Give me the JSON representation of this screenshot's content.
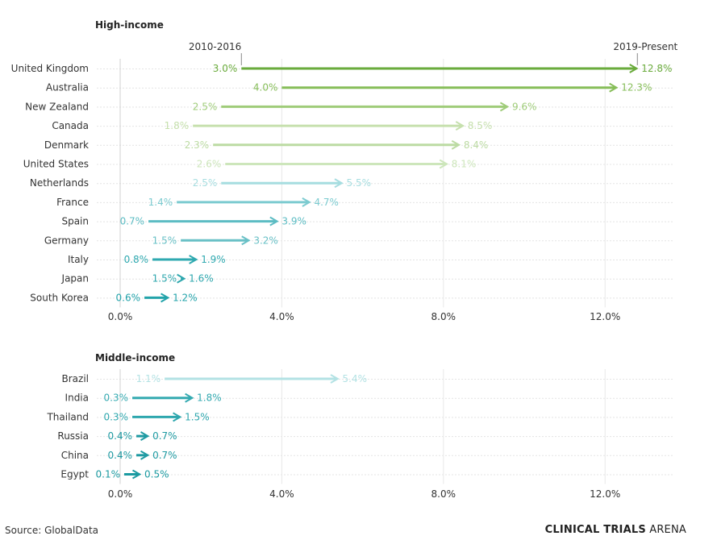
{
  "chart_data": [
    {
      "type": "dumbbell-arrow",
      "title": "High-income",
      "start_label": "2010-2016",
      "end_label": "2019-Present",
      "xlim": [
        0,
        13.8
      ],
      "xticks": [
        "0.0%",
        "4.0%",
        "8.0%",
        "12.0%"
      ],
      "xtick_values": [
        0,
        4,
        8,
        12
      ],
      "grid": true,
      "rows": [
        {
          "country": "United Kingdom",
          "start": 3.0,
          "end": 12.8,
          "start_label": "3.0%",
          "end_label": "12.8%",
          "color": "#6aab3c"
        },
        {
          "country": "Australia",
          "start": 4.0,
          "end": 12.3,
          "start_label": "4.0%",
          "end_label": "12.3%",
          "color": "#86bd58"
        },
        {
          "country": "New Zealand",
          "start": 2.5,
          "end": 9.6,
          "start_label": "2.5%",
          "end_label": "9.6%",
          "color": "#9fcc79"
        },
        {
          "country": "Canada",
          "start": 1.8,
          "end": 8.5,
          "start_label": "1.8%",
          "end_label": "8.5%",
          "color": "#c6e0ad"
        },
        {
          "country": "Denmark",
          "start": 2.3,
          "end": 8.4,
          "start_label": "2.3%",
          "end_label": "8.4%",
          "color": "#bcdba3"
        },
        {
          "country": "United States",
          "start": 2.6,
          "end": 8.1,
          "start_label": "2.6%",
          "end_label": "8.1%",
          "color": "#cde6bb"
        },
        {
          "country": "Netherlands",
          "start": 2.5,
          "end": 5.5,
          "start_label": "2.5%",
          "end_label": "5.5%",
          "color": "#a6dde0"
        },
        {
          "country": "France",
          "start": 1.4,
          "end": 4.7,
          "start_label": "1.4%",
          "end_label": "4.7%",
          "color": "#7ccbd0"
        },
        {
          "country": "Spain",
          "start": 0.7,
          "end": 3.9,
          "start_label": "0.7%",
          "end_label": "3.9%",
          "color": "#5cbcc3"
        },
        {
          "country": "Germany",
          "start": 1.5,
          "end": 3.2,
          "start_label": "1.5%",
          "end_label": "3.2%",
          "color": "#68c0c6"
        },
        {
          "country": "Italy",
          "start": 0.8,
          "end": 1.9,
          "start_label": "0.8%",
          "end_label": "1.9%",
          "color": "#2fa9b0"
        },
        {
          "country": "Japan",
          "start": 1.5,
          "end": 1.6,
          "start_label": "1.5%",
          "end_label": "1.6%",
          "color": "#2ea7ae"
        },
        {
          "country": "South Korea",
          "start": 0.6,
          "end": 1.2,
          "start_label": "0.6%",
          "end_label": "1.2%",
          "color": "#22a3aa"
        }
      ]
    },
    {
      "type": "dumbbell-arrow",
      "title": "Middle-income",
      "xlim": [
        0,
        13.8
      ],
      "xticks": [
        "0.0%",
        "4.0%",
        "8.0%",
        "12.0%"
      ],
      "xtick_values": [
        0,
        4,
        8,
        12
      ],
      "grid": true,
      "rows": [
        {
          "country": "Brazil",
          "start": 1.1,
          "end": 5.4,
          "start_label": "1.1%",
          "end_label": "5.4%",
          "color": "#b3e2e4"
        },
        {
          "country": "India",
          "start": 0.3,
          "end": 1.8,
          "start_label": "0.3%",
          "end_label": "1.8%",
          "color": "#35aab1"
        },
        {
          "country": "Thailand",
          "start": 0.3,
          "end": 1.5,
          "start_label": "0.3%",
          "end_label": "1.5%",
          "color": "#2ea7ae"
        },
        {
          "country": "Russia",
          "start": 0.4,
          "end": 0.7,
          "start_label": "0.4%",
          "end_label": "0.7%",
          "color": "#1e9aa2"
        },
        {
          "country": "China",
          "start": 0.4,
          "end": 0.7,
          "start_label": "0.4%",
          "end_label": "0.7%",
          "color": "#1e9aa2"
        },
        {
          "country": "Egypt",
          "start": 0.1,
          "end": 0.5,
          "start_label": "0.1%",
          "end_label": "0.5%",
          "color": "#1b9aa1"
        }
      ]
    }
  ],
  "footer": {
    "source": "Source: GlobalData",
    "brand_bold": "CLINICAL TRIALS",
    "brand_light": "ARENA"
  }
}
